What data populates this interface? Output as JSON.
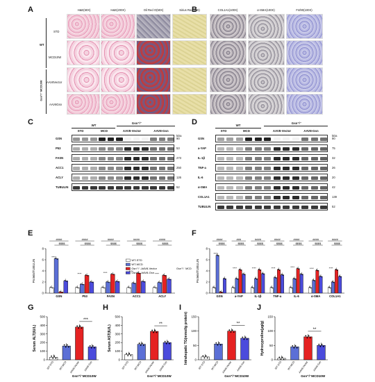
{
  "panels": {
    "A": {
      "label": "A",
      "headers": [
        "H&E(50X)",
        "H&E(200X)",
        "Oil Red O(50X)",
        "Sirius Red(50X)"
      ],
      "rows": [
        "STD",
        "MCD10W",
        "AAV8Vector",
        "AAV8Gsn"
      ],
      "groups": [
        "WT",
        "Gsn⁺/⁻ MCD10W"
      ]
    },
    "B": {
      "label": "B",
      "headers": [
        "COL1A1(100X)",
        "α-SMA(100X)",
        "F4/80(100X)"
      ]
    },
    "C": {
      "label": "C",
      "group_wt": "WT",
      "group_ko": "Gsn⁺/⁻",
      "sub_std": "STD",
      "sub_mcd": "MCD",
      "sub_vec": "AAV8-Vector",
      "sub_gsn": "AAV8-Gsn",
      "kda_label": "kDa",
      "blots": [
        {
          "name": "GSN",
          "kda": "90"
        },
        {
          "name": "P53",
          "kda": "53"
        },
        {
          "name": "FASN",
          "kda": "273"
        },
        {
          "name": "ACC1",
          "kda": "250"
        },
        {
          "name": "ACLY",
          "kda": "126"
        },
        {
          "name": "TUBULIN",
          "kda": "52"
        }
      ]
    },
    "D": {
      "label": "D",
      "group_wt": "WT",
      "group_ko": "Gsn⁺/⁻",
      "sub_std": "STD",
      "sub_mcd": "MCD",
      "sub_vec": "AAV8-Vector",
      "sub_gsn": "AAV8-Gsn",
      "kda_label": "kDa",
      "blots": [
        {
          "name": "GSN",
          "kda": "90"
        },
        {
          "name": "a-YAP",
          "kda": "75"
        },
        {
          "name": "IL-1β",
          "kda": "32"
        },
        {
          "name": "TNF-a",
          "kda": "26"
        },
        {
          "name": "IL-6",
          "kda": "20"
        },
        {
          "name": "α-SMA",
          "kda": "42"
        },
        {
          "name": "COL1A1",
          "kda": "139"
        },
        {
          "name": "TUBULIN",
          "kda": "52"
        }
      ]
    },
    "E": {
      "label": "E",
      "ylabel": "Protein/TUBULIN",
      "legend": [
        "WT-STD",
        "WT-MCD",
        "Gsn⁺/⁻-AAV8-Vector",
        "Gsn⁺/⁻-AAV8-Gsn"
      ],
      "legend_side": "Gsn⁺/⁻ MCD10W"
    },
    "F": {
      "label": "F",
      "ylabel": "Protein/TUBULIN"
    },
    "G": {
      "label": "G",
      "ylabel": "Serum ALT(IU/L)",
      "xlabel": "Gsn⁺/⁻MCD10W",
      "sig": "***"
    },
    "H": {
      "label": "H",
      "ylabel": "Serum AST(IU/L)",
      "xlabel": "Gsn⁺/⁻MCD10W",
      "sig": "**"
    },
    "I": {
      "label": "I",
      "ylabel": "Intrahepatic TG(mmol/g protein)",
      "xlabel": "Gsn⁺/⁻MCD10W",
      "sig": "**"
    },
    "J": {
      "label": "J",
      "ylabel": "Hydroxyproline(μg/g)",
      "xlabel": "Gsn⁺/⁻MCD10W",
      "sig": "**"
    }
  },
  "colors": {
    "std": "#ffffff",
    "mcd": "#5b6fd6",
    "vec": "#e52222",
    "gsn": "#4b4bdc"
  },
  "chart_data": [
    {
      "type": "bar",
      "id": "E",
      "categories": [
        "GSN",
        "P53",
        "FASN",
        "ACC1",
        "ACLY"
      ],
      "ylim": [
        0,
        8
      ],
      "yticks": [
        0,
        2,
        4,
        6,
        8
      ],
      "series": [
        {
          "name": "WT-STD",
          "values": [
            1,
            1,
            1,
            1,
            1
          ]
        },
        {
          "name": "WT-MCD",
          "values": [
            6.2,
            1.6,
            2.0,
            1.8,
            1.9
          ]
        },
        {
          "name": "Gsn⁺/⁻-AAV8-Vector",
          "values": [
            0.2,
            3.2,
            3.4,
            3.6,
            3.2
          ]
        },
        {
          "name": "Gsn⁺/⁻-AAV8-Gsn",
          "values": [
            2.2,
            2.0,
            2.1,
            2.1,
            2.5
          ]
        }
      ],
      "sig_top": [
        "####",
        "####",
        "####",
        "####",
        "####"
      ],
      "sig_mid": [
        "$$$$",
        "$$$$",
        "$$$$",
        "$$$$",
        "$$$$"
      ]
    },
    {
      "type": "bar",
      "id": "F",
      "categories": [
        "GSN",
        "a-YAP",
        "IL-1β",
        "TNF-a",
        "IL-6",
        "α-SMA",
        "COL1A1"
      ],
      "ylim": [
        0,
        8
      ],
      "yticks": [
        0,
        2,
        4,
        6,
        8
      ],
      "series": [
        {
          "name": "WT-STD",
          "values": [
            1,
            1,
            1,
            1,
            1,
            1,
            1
          ]
        },
        {
          "name": "WT-MCD",
          "values": [
            6.8,
            2.6,
            2.6,
            2.8,
            2.6,
            2.3,
            2.0
          ]
        },
        {
          "name": "Gsn⁺/⁻-AAV8-Vector",
          "values": [
            0.2,
            4.2,
            4.2,
            4.2,
            4.4,
            4.1,
            4.2
          ]
        },
        {
          "name": "Gsn⁺/⁻-AAV8-Gsn",
          "values": [
            2.6,
            3.4,
            3.5,
            3.3,
            3.4,
            3.0,
            3.0
          ]
        }
      ],
      "sig_top": [
        "####",
        "###",
        "####",
        "####",
        "####",
        "####",
        "####"
      ],
      "sig_mid": [
        "$$$$",
        "$$$$",
        "$$$$",
        "$$$$",
        "$$$$",
        "$$$$",
        "$$$$"
      ]
    },
    {
      "type": "bar",
      "id": "G",
      "categories": [
        "WT-STD",
        "WT-MCD",
        "AAV8-Vector",
        "AAV8-Gsn"
      ],
      "values": [
        30,
        160,
        380,
        150
      ],
      "ylim": [
        0,
        500
      ],
      "yticks": [
        0,
        100,
        200,
        300,
        400,
        500
      ]
    },
    {
      "type": "bar",
      "id": "H",
      "categories": [
        "WT-STD",
        "WT-MCD",
        "AAV8-Vector",
        "AAV8-Gsn"
      ],
      "values": [
        60,
        180,
        330,
        200
      ],
      "ylim": [
        0,
        500
      ],
      "yticks": [
        0,
        100,
        200,
        300,
        400,
        500
      ]
    },
    {
      "type": "bar",
      "id": "I",
      "categories": [
        "WT-STD",
        "WT-MCD",
        "AAV8-Vector",
        "AAV8-Gsn"
      ],
      "values": [
        10,
        55,
        100,
        75
      ],
      "ylim": [
        0,
        150
      ],
      "yticks": [
        0,
        50,
        100,
        150
      ]
    },
    {
      "type": "bar",
      "id": "J",
      "categories": [
        "WT-STD",
        "WT-MCD",
        "AAV8-Vector",
        "AAV8-Gsn"
      ],
      "values": [
        5,
        45,
        80,
        50
      ],
      "ylim": [
        0,
        150
      ],
      "yticks": [
        0,
        50,
        100,
        150
      ]
    }
  ]
}
